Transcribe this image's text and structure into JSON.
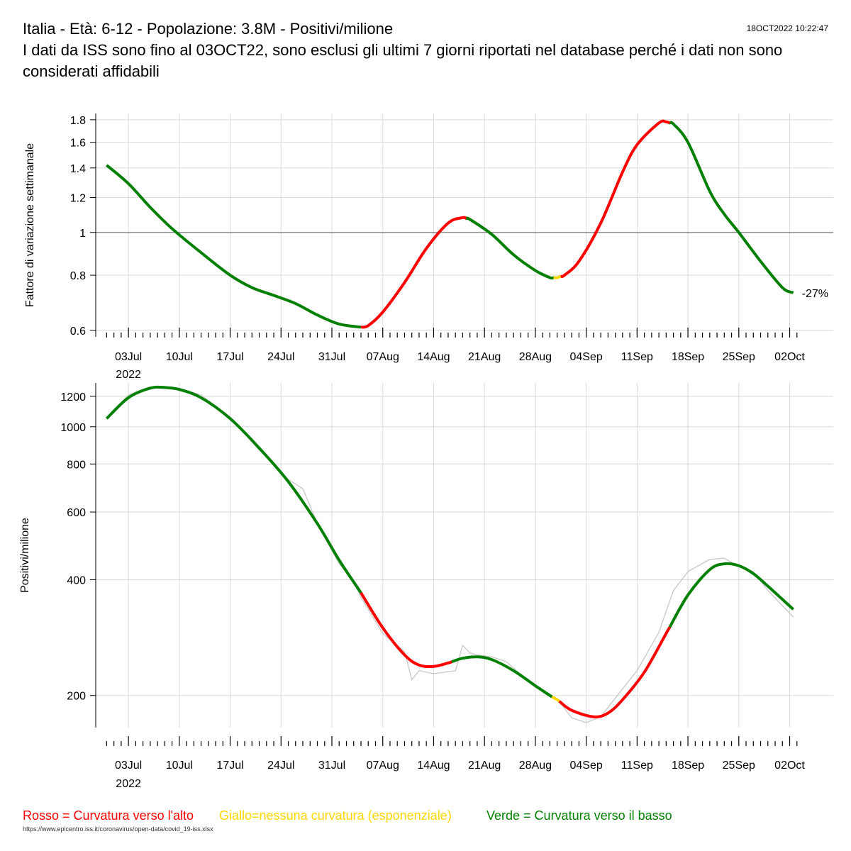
{
  "header": {
    "title": "Italia - Età: 6-12 - Popolazione: 3.8M - Positivi/milione",
    "subtitle": "I dati da ISS sono fino al 03OCT22, sono esclusi gli ultimi 7 giorni riportati nel database perché i dati non sono considerati affidabili",
    "timestamp": "18OCT2022 10:22:47"
  },
  "legend": {
    "red": "Rosso = Curvatura verso l'alto",
    "yellow": "Giallo=nessuna curvatura (esponenziale)",
    "green": "Verde = Curvatura verso il basso"
  },
  "source": "https://www.epicentro.iss.it/coronavirus/open-data/covid_19-iss.xlsx",
  "colors": {
    "red": "#ff0000",
    "yellow": "#ffd700",
    "green": "#008000",
    "grid": "#d9d9d9",
    "raw": "#c8c8c8",
    "refline": "#808080"
  },
  "chart_data": [
    {
      "type": "line",
      "ylabel": "Fattore di variazione settimanale",
      "yscale": "log",
      "ylim": [
        0.58,
        1.86
      ],
      "yticks": [
        "0.6",
        "0.8",
        "1",
        "1.2",
        "1.4",
        "1.6",
        "1.8"
      ],
      "reference_line": 1,
      "xlim": [
        -4.5,
        97
      ],
      "xtick_days": [
        0,
        7,
        14,
        21,
        28,
        35,
        42,
        49,
        56,
        63,
        70,
        77,
        84,
        91
      ],
      "xtick_labels": [
        "03Jul",
        "10Jul",
        "17Jul",
        "24Jul",
        "31Jul",
        "07Aug",
        "14Aug",
        "21Aug",
        "28Aug",
        "04Sep",
        "11Sep",
        "18Sep",
        "25Sep",
        "02Oct"
      ],
      "x_year_label": "2022",
      "end_label": "-27%",
      "series": [
        {
          "name": "fattore",
          "days": [
            -3,
            0,
            3,
            6,
            10,
            14,
            17,
            20,
            23,
            26,
            29,
            32,
            33,
            35,
            38,
            41,
            44,
            46,
            47,
            50,
            53,
            56,
            58,
            59,
            60,
            62,
            65,
            68,
            70,
            73,
            74,
            75,
            77,
            80,
            82,
            84,
            87,
            90,
            91.5
          ],
          "values": [
            1.42,
            1.29,
            1.14,
            1.02,
            0.9,
            0.8,
            0.75,
            0.72,
            0.69,
            0.65,
            0.62,
            0.61,
            0.615,
            0.66,
            0.77,
            0.92,
            1.05,
            1.08,
            1.07,
            0.99,
            0.89,
            0.82,
            0.79,
            0.79,
            0.8,
            0.86,
            1.05,
            1.37,
            1.58,
            1.77,
            1.78,
            1.76,
            1.6,
            1.24,
            1.1,
            1.0,
            0.86,
            0.75,
            0.73
          ],
          "curvature_segments": [
            {
              "from": -3,
              "to": 32,
              "color": "green"
            },
            {
              "from": 32,
              "to": 46.5,
              "color": "red"
            },
            {
              "from": 46.5,
              "to": 58.5,
              "color": "green"
            },
            {
              "from": 58.5,
              "to": 59.5,
              "color": "yellow"
            },
            {
              "from": 59.5,
              "to": 74.5,
              "color": "red"
            },
            {
              "from": 74.5,
              "to": 91.5,
              "color": "green"
            }
          ]
        }
      ]
    },
    {
      "type": "line",
      "ylabel": "Positivi/milione",
      "yscale": "log",
      "ylim": [
        165,
        1300
      ],
      "yticks": [
        "200",
        "400",
        "600",
        "800",
        "1000",
        "1200"
      ],
      "xlim": [
        -4.5,
        97
      ],
      "xtick_days": [
        0,
        7,
        14,
        21,
        28,
        35,
        42,
        49,
        56,
        63,
        70,
        77,
        84,
        91
      ],
      "xtick_labels": [
        "03Jul",
        "10Jul",
        "17Jul",
        "24Jul",
        "31Jul",
        "07Aug",
        "14Aug",
        "21Aug",
        "28Aug",
        "04Sep",
        "11Sep",
        "18Sep",
        "25Sep",
        "02Oct"
      ],
      "x_year_label": "2022",
      "series": [
        {
          "name": "smoothed",
          "days": [
            -3,
            0,
            3,
            5,
            7,
            10,
            14,
            18,
            22,
            26,
            29,
            32,
            35,
            38,
            40,
            42,
            44,
            46,
            48,
            50,
            53,
            56,
            58,
            59,
            61,
            64,
            66,
            68,
            71,
            74,
            77,
            80,
            82,
            84,
            86,
            88,
            91.5
          ],
          "values": [
            1050,
            1190,
            1260,
            1265,
            1250,
            1190,
            1050,
            880,
            720,
            560,
            450,
            370,
            300,
            255,
            240,
            238,
            243,
            250,
            252,
            248,
            232,
            212,
            200,
            195,
            183,
            176,
            180,
            195,
            230,
            290,
            365,
            425,
            440,
            435,
            415,
            385,
            335
          ],
          "curvature_segments": [
            {
              "from": -3,
              "to": 32,
              "color": "green"
            },
            {
              "from": 32,
              "to": 44.5,
              "color": "red"
            },
            {
              "from": 44.5,
              "to": 58.3,
              "color": "green"
            },
            {
              "from": 58.3,
              "to": 59.3,
              "color": "yellow"
            },
            {
              "from": 59.3,
              "to": 74.5,
              "color": "red"
            },
            {
              "from": 74.5,
              "to": 91.5,
              "color": "green"
            }
          ]
        },
        {
          "name": "raw",
          "days": [
            -3,
            0,
            3,
            7,
            10,
            14,
            18,
            22,
            24,
            26,
            29,
            31,
            32,
            35,
            38,
            39,
            40,
            42,
            45,
            46,
            47,
            48,
            50,
            52,
            56,
            58,
            59,
            61,
            63,
            65,
            67,
            70,
            73,
            75,
            77,
            80,
            82,
            84,
            86,
            88,
            91.5
          ],
          "values": [
            1055,
            1210,
            1270,
            1260,
            1210,
            1060,
            870,
            730,
            690,
            560,
            440,
            395,
            360,
            290,
            260,
            220,
            232,
            228,
            232,
            270,
            258,
            255,
            252,
            245,
            210,
            200,
            196,
            175,
            170,
            176,
            197,
            232,
            292,
            375,
            420,
            452,
            455,
            433,
            420,
            375,
            320
          ]
        }
      ]
    }
  ]
}
